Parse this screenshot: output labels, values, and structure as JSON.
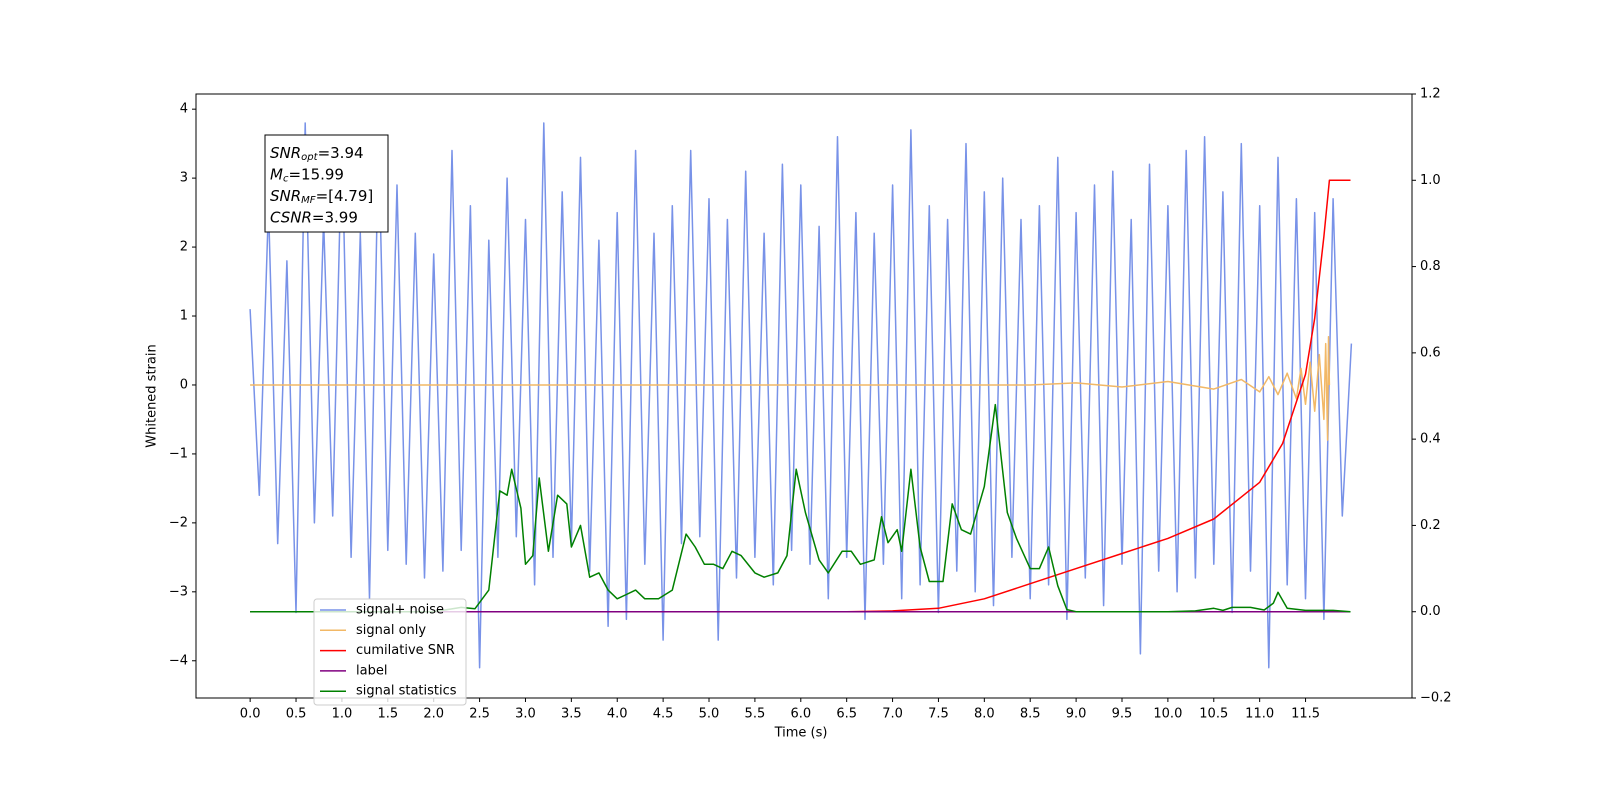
{
  "chart_data": {
    "type": "line",
    "xlabel": "Time (s)",
    "ylabel": "Whitened strain",
    "xlim": [
      -0.59,
      12.66
    ],
    "ylim": [
      -4.54,
      4.22
    ],
    "y2lim": [
      -0.2,
      1.2
    ],
    "xticks": [
      {
        "value": 0,
        "label": "0.0"
      },
      0.5,
      {
        "value": 1,
        "label": "1.0"
      },
      1.5,
      {
        "value": 2,
        "label": "2.0"
      },
      2.5,
      {
        "value": 3,
        "label": "3.0"
      },
      3.5,
      {
        "value": 4,
        "label": "4.0"
      },
      4.5,
      {
        "value": 5,
        "label": "5.0"
      },
      5.5,
      {
        "value": 6,
        "label": "6.0"
      },
      6.5,
      {
        "value": 7,
        "label": "7.0"
      },
      7.5,
      {
        "value": 8,
        "label": "8.0"
      },
      8.5,
      {
        "value": 9,
        "label": "9.0"
      },
      9.5,
      {
        "value": 10,
        "label": "10.0"
      },
      10.5,
      {
        "value": 11,
        "label": "11.0"
      },
      11.5
    ],
    "yticks": [
      {
        "value": -4,
        "label": "−4"
      },
      {
        "value": -3,
        "label": "−3"
      },
      {
        "value": -2,
        "label": "−2"
      },
      {
        "value": -1,
        "label": "−1"
      },
      0,
      1,
      2,
      3,
      4
    ],
    "y2ticks": [
      {
        "value": -0.2,
        "label": "−0.2"
      },
      {
        "value": 0,
        "label": "0.0"
      },
      0.2,
      0.4,
      0.6,
      0.8,
      {
        "value": 1,
        "label": "1.0"
      },
      1.2
    ],
    "annotations": [
      {
        "symbol": "SNR",
        "subscript": "opt",
        "text": "=3.94"
      },
      {
        "symbol": "M",
        "subscript": "c",
        "text": "=15.99"
      },
      {
        "symbol": "SNR",
        "subscript": "MF",
        "text": "=[4.79]"
      },
      {
        "symbol": "CSNR",
        "text": "=3.99"
      }
    ],
    "legend": "lower left",
    "series": [
      {
        "name": "signal+ noise",
        "color": "#7892e8",
        "axis": "y",
        "x": [
          0,
          0.1,
          0.2,
          0.3,
          0.4,
          0.5,
          0.6,
          0.7,
          0.8,
          0.9,
          1,
          1.1,
          1.2,
          1.3,
          1.4,
          1.5,
          1.6,
          1.7,
          1.8,
          1.9,
          2,
          2.1,
          2.2,
          2.3,
          2.4,
          2.5,
          2.6,
          2.7,
          2.8,
          2.9,
          3,
          3.1,
          3.2,
          3.3,
          3.4,
          3.5,
          3.6,
          3.7,
          3.8,
          3.9,
          4,
          4.1,
          4.2,
          4.3,
          4.4,
          4.5,
          4.6,
          4.7,
          4.8,
          4.9,
          5,
          5.1,
          5.2,
          5.3,
          5.4,
          5.5,
          5.6,
          5.7,
          5.8,
          5.9,
          6,
          6.1,
          6.2,
          6.3,
          6.4,
          6.5,
          6.6,
          6.7,
          6.8,
          6.9,
          7,
          7.1,
          7.2,
          7.3,
          7.4,
          7.5,
          7.6,
          7.7,
          7.8,
          7.9,
          8,
          8.1,
          8.2,
          8.3,
          8.4,
          8.5,
          8.6,
          8.7,
          8.8,
          8.9,
          9,
          9.1,
          9.2,
          9.3,
          9.4,
          9.5,
          9.6,
          9.7,
          9.8,
          9.9,
          10,
          10.1,
          10.2,
          10.3,
          10.4,
          10.5,
          10.6,
          10.7,
          10.8,
          10.9,
          11,
          11.1,
          11.2,
          11.3,
          11.4,
          11.5,
          11.6,
          11.7,
          11.8,
          11.9,
          12
        ],
        "values": [
          1.1,
          -1.6,
          2.6,
          -2.3,
          1.8,
          -3.3,
          3.8,
          -2.0,
          2.4,
          -1.9,
          3.6,
          -2.5,
          2.2,
          -3.1,
          3.6,
          -2.4,
          2.9,
          -2.6,
          2.2,
          -2.8,
          1.9,
          -2.7,
          3.4,
          -2.4,
          2.6,
          -4.1,
          2.1,
          -2.5,
          3.0,
          -2.2,
          2.4,
          -2.9,
          3.8,
          -2.5,
          2.8,
          -2.3,
          3.3,
          -2.7,
          2.1,
          -3.5,
          2.5,
          -3.4,
          3.4,
          -2.6,
          2.2,
          -3.7,
          2.6,
          -2.3,
          3.4,
          -2.2,
          2.7,
          -3.7,
          2.4,
          -2.8,
          3.1,
          -2.5,
          2.2,
          -2.9,
          3.2,
          -2.4,
          2.9,
          -2.6,
          2.3,
          -3.1,
          3.6,
          -2.5,
          2.5,
          -3.4,
          2.2,
          -2.6,
          2.9,
          -3.1,
          3.7,
          -2.9,
          2.6,
          -3.3,
          2.4,
          -2.7,
          3.5,
          -3.0,
          2.8,
          -3.2,
          3.0,
          -2.5,
          2.4,
          -3.1,
          2.6,
          -2.9,
          3.3,
          -3.4,
          2.5,
          -2.8,
          2.9,
          -3.2,
          3.1,
          -2.6,
          2.4,
          -3.9,
          3.2,
          -2.7,
          2.6,
          -3.0,
          3.4,
          -2.8,
          3.6,
          -2.6,
          2.8,
          -3.3,
          3.5,
          -2.7,
          2.6,
          -4.1,
          3.3,
          -2.9,
          2.7,
          -3.1,
          2.5,
          -3.4,
          2.7,
          -1.9,
          0.6
        ]
      },
      {
        "name": "signal only",
        "color": "#f2b866",
        "axis": "y",
        "x": [
          0,
          8.5,
          9.0,
          9.5,
          10.0,
          10.5,
          10.8,
          11.0,
          11.1,
          11.2,
          11.3,
          11.4,
          11.45,
          11.5,
          11.55,
          11.6,
          11.65,
          11.7,
          11.72,
          11.74,
          11.75,
          11.76
        ],
        "values": [
          0,
          0,
          0.03,
          -0.03,
          0.05,
          -0.06,
          0.08,
          -0.1,
          0.12,
          -0.14,
          0.17,
          -0.2,
          0.24,
          -0.28,
          0.33,
          -0.38,
          0.44,
          -0.5,
          0.6,
          -0.8,
          0.7,
          0
        ]
      },
      {
        "name": "cumilative SNR",
        "color": "#ff0000",
        "axis": "y2",
        "x": [
          0,
          6.5,
          7.0,
          7.5,
          8.0,
          8.5,
          9.0,
          9.5,
          10.0,
          10.5,
          11.0,
          11.25,
          11.5,
          11.6,
          11.7,
          11.76,
          11.99
        ],
        "values": [
          0,
          0,
          0.002,
          0.008,
          0.03,
          0.065,
          0.1,
          0.135,
          0.17,
          0.215,
          0.3,
          0.39,
          0.55,
          0.68,
          0.87,
          1,
          1
        ]
      },
      {
        "name": "label",
        "color": "#800080",
        "axis": "y2",
        "x": [
          0,
          11.99
        ],
        "values": [
          0,
          0
        ]
      },
      {
        "name": "signal statistics",
        "color": "#008000",
        "axis": "y2",
        "x": [
          0,
          2.0,
          2.3,
          2.45,
          2.6,
          2.72,
          2.8,
          2.85,
          2.95,
          3.0,
          3.08,
          3.15,
          3.25,
          3.35,
          3.45,
          3.5,
          3.6,
          3.7,
          3.8,
          3.9,
          4.0,
          4.1,
          4.2,
          4.3,
          4.45,
          4.6,
          4.75,
          4.85,
          4.95,
          5.05,
          5.15,
          5.25,
          5.35,
          5.5,
          5.6,
          5.75,
          5.85,
          5.95,
          6.05,
          6.2,
          6.3,
          6.45,
          6.55,
          6.65,
          6.8,
          6.88,
          6.95,
          7.05,
          7.1,
          7.2,
          7.3,
          7.4,
          7.55,
          7.65,
          7.75,
          7.85,
          8.0,
          8.12,
          8.25,
          8.35,
          8.5,
          8.6,
          8.7,
          8.8,
          8.9,
          9.0,
          10.0,
          10.3,
          10.5,
          10.6,
          10.7,
          10.9,
          11.05,
          11.15,
          11.2,
          11.3,
          11.5,
          11.8,
          11.99
        ],
        "values": [
          0,
          0,
          0.01,
          0.007,
          0.05,
          0.28,
          0.27,
          0.33,
          0.24,
          0.11,
          0.13,
          0.31,
          0.14,
          0.27,
          0.25,
          0.15,
          0.2,
          0.08,
          0.09,
          0.05,
          0.03,
          0.04,
          0.05,
          0.03,
          0.03,
          0.05,
          0.18,
          0.15,
          0.11,
          0.11,
          0.1,
          0.14,
          0.13,
          0.09,
          0.08,
          0.09,
          0.13,
          0.33,
          0.23,
          0.12,
          0.09,
          0.14,
          0.14,
          0.11,
          0.12,
          0.22,
          0.16,
          0.19,
          0.14,
          0.33,
          0.15,
          0.07,
          0.07,
          0.25,
          0.19,
          0.18,
          0.29,
          0.48,
          0.23,
          0.17,
          0.1,
          0.1,
          0.15,
          0.06,
          0.005,
          0,
          0,
          0.002,
          0.008,
          0.003,
          0.01,
          0.01,
          0.004,
          0.02,
          0.045,
          0.008,
          0.003,
          0.003,
          0
        ]
      }
    ]
  }
}
